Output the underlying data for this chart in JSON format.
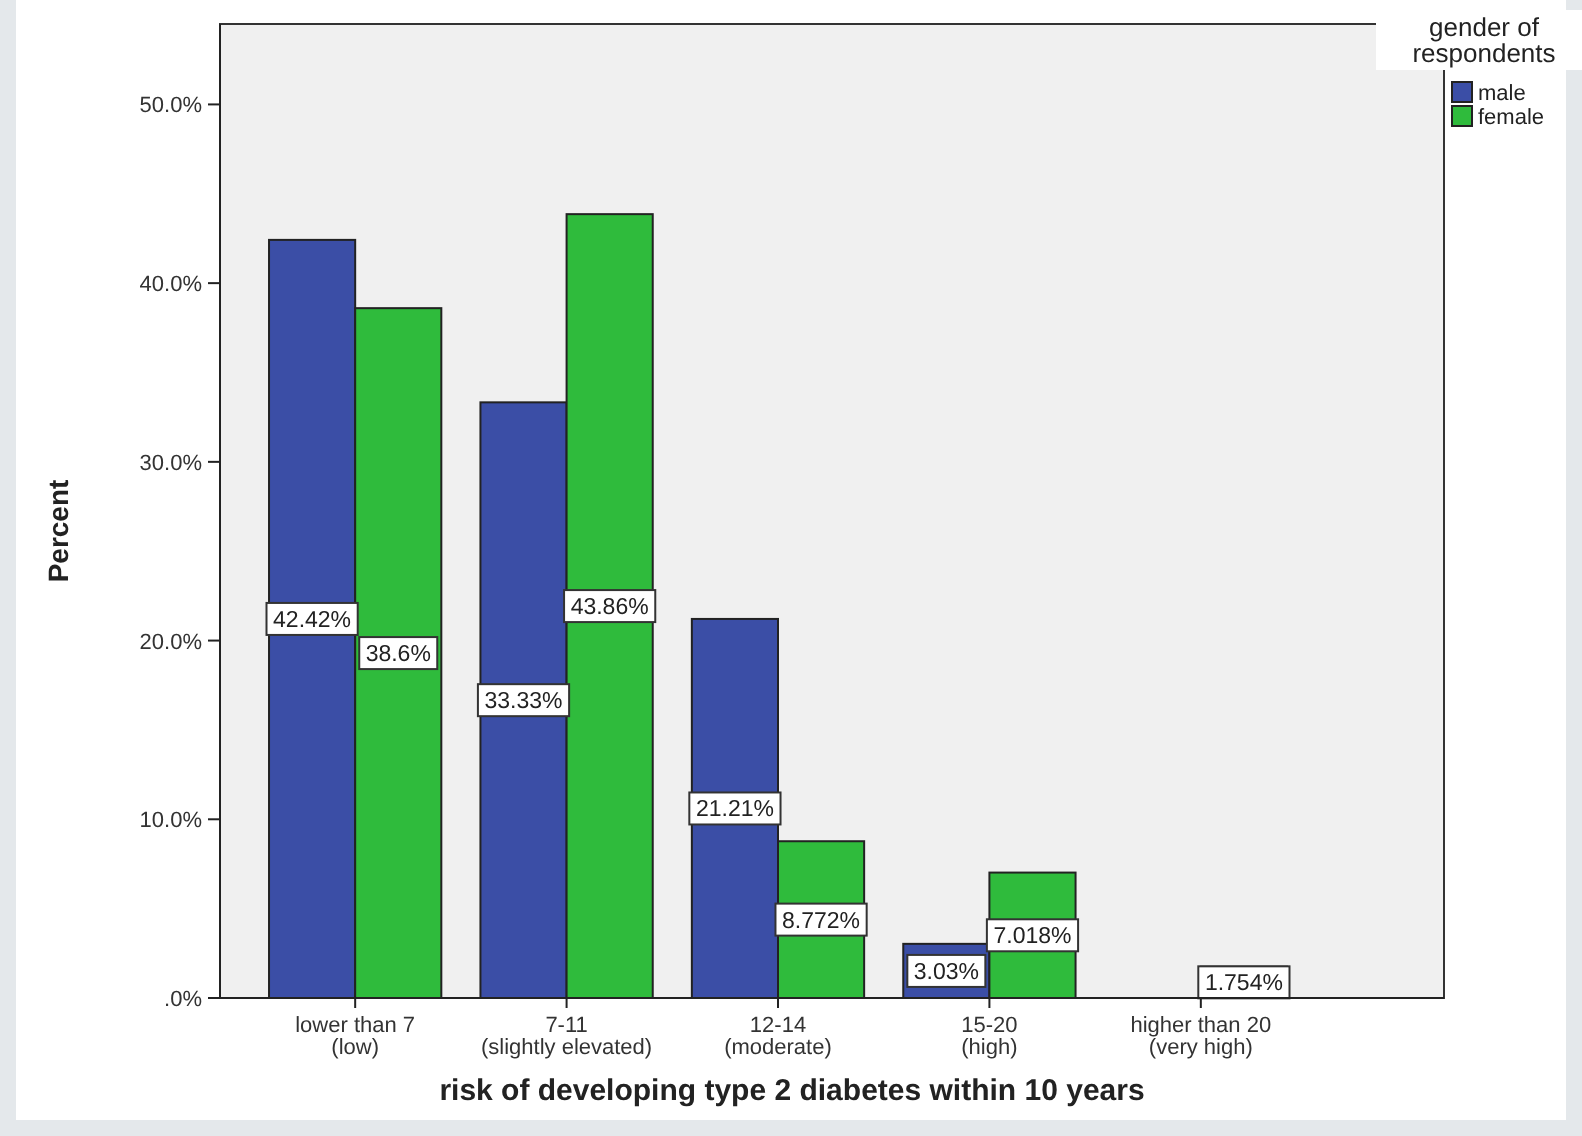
{
  "chart_data": {
    "type": "bar",
    "xlabel": "risk of developing type 2 diabetes within 10 years",
    "ylabel": "Percent",
    "legend_title": "gender of respondents",
    "categories": [
      "lower than 7 (low)",
      "7-11 (slightly elevated)",
      "12-14 (moderate)",
      "15-20 (high)",
      "higher than 20 (very high)"
    ],
    "series": [
      {
        "name": "male",
        "color": "#3b4ea6",
        "values": [
          42.42,
          33.33,
          21.21,
          3.03,
          0
        ],
        "value_labels": [
          "42.42%",
          "33.33%",
          "21.21%",
          "3.03%",
          null
        ]
      },
      {
        "name": "female",
        "color": "#2fbb3c",
        "values": [
          38.6,
          43.86,
          8.772,
          7.018,
          1.754
        ],
        "value_labels": [
          "38.6%",
          "43.86%",
          "8.772%",
          "7.018%",
          "1.754%"
        ]
      }
    ],
    "ylim": [
      0,
      54.5
    ],
    "yticks": [
      {
        "value": 0,
        "label": ".0%"
      },
      {
        "value": 10,
        "label": "10.0%"
      },
      {
        "value": 20,
        "label": "20.0%"
      },
      {
        "value": 30,
        "label": "30.0%"
      },
      {
        "value": 40,
        "label": "40.0%"
      },
      {
        "value": 50,
        "label": "50.0%"
      }
    ],
    "legend": "top right",
    "grid": false
  }
}
